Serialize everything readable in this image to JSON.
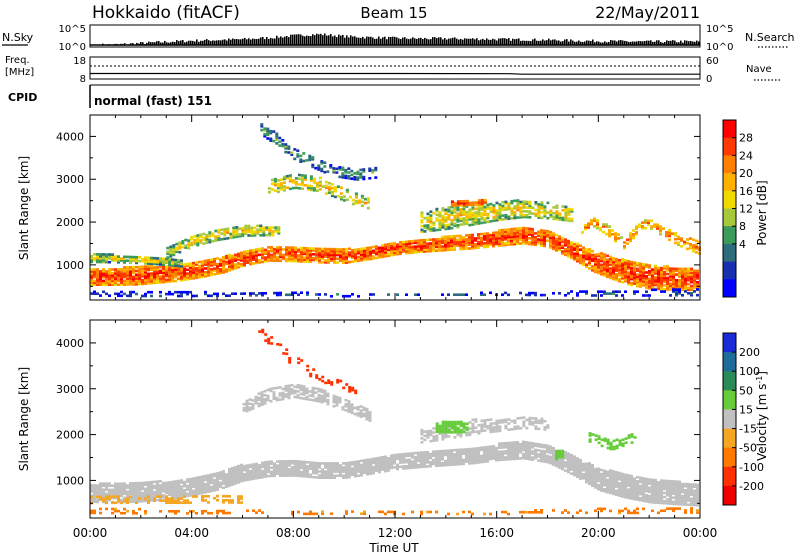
{
  "header": {
    "site": "Hokkaido (fitACF)",
    "beam": "Beam 15",
    "date": "22/May/2011"
  },
  "strips": {
    "nsky": {
      "left_label": "N.Sky",
      "right_label": "N.Search",
      "left_ticks": [
        "10^5",
        "10^0"
      ],
      "right_ticks": [
        "10^5",
        "10^0"
      ]
    },
    "freq": {
      "left_label_1": "Freq.",
      "left_label_2": "[MHz]",
      "right_label": "Nave",
      "left_ticks": [
        "18",
        "8"
      ],
      "right_ticks": [
        "60",
        "0"
      ]
    },
    "cpid": {
      "label": "CPID",
      "program": "normal (fast) 151"
    }
  },
  "axes": {
    "xlabel": "Time UT",
    "ylabel": "Slant Range [km]",
    "x_ticks": [
      "00:00",
      "04:00",
      "08:00",
      "12:00",
      "16:00",
      "20:00",
      "00:00"
    ],
    "y_ticks": [
      "1000",
      "2000",
      "3000",
      "4000"
    ]
  },
  "colorbars": {
    "power": {
      "label": "Power [dB]",
      "ticks": [
        "28",
        "24",
        "20",
        "16",
        "12",
        "8",
        "4"
      ],
      "colors": [
        "#ff0000",
        "#ff3a00",
        "#ff8000",
        "#ffb000",
        "#f0d800",
        "#a8c83c",
        "#3c9a5a",
        "#2c6c7c",
        "#1830b0",
        "#0000ff"
      ]
    },
    "velocity": {
      "label_main": "Velocity [m s",
      "label_sup": "-1",
      "label_end": "]",
      "ticks": [
        "200",
        "100",
        "50",
        "15",
        "-15",
        "-50",
        "-100",
        "-200"
      ],
      "colors": [
        "#1a2ad8",
        "#1e6c9a",
        "#2a8a58",
        "#66cc3a",
        "#c0c0c0",
        "#f5a623",
        "#ff7800",
        "#ff3000",
        "#ee0000"
      ]
    }
  },
  "chart_data": [
    {
      "type": "line",
      "name": "N.Sky / N.Search",
      "x_hours": [
        0,
        1,
        2,
        3,
        4,
        5,
        6,
        7,
        8,
        9,
        10,
        11,
        12,
        13,
        14,
        15,
        16,
        17,
        18,
        19,
        20,
        21,
        22,
        23,
        24
      ],
      "y_log10": [
        0,
        0.1,
        0.5,
        0.9,
        1.2,
        1.4,
        1.6,
        2.0,
        2.6,
        3.0,
        2.4,
        2.1,
        1.9,
        1.8,
        1.8,
        1.7,
        1.6,
        1.5,
        1.4,
        1.2,
        1.1,
        1.0,
        0.9,
        1.0,
        0.9
      ],
      "ylim_log10": [
        0,
        5
      ]
    },
    {
      "type": "line",
      "name": "Freq.",
      "x_hours": [
        0,
        6,
        12,
        16.5,
        17,
        24
      ],
      "values": [
        10.5,
        10.5,
        10.5,
        10.4,
        10.2,
        10.2
      ],
      "ylim": [
        8,
        18
      ]
    },
    {
      "type": "heatmap",
      "name": "Power [dB]",
      "x_range_hours": [
        0,
        24
      ],
      "ylim_km": [
        180,
        4500
      ],
      "clim_db": [
        3,
        30
      ],
      "bands": [
        {
          "t": [
            0,
            0.2,
            1.0,
            1.8,
            2.6,
            3.5,
            4.3,
            5.2,
            6.0,
            7.0,
            8.0,
            9.0,
            10.0,
            11.0,
            12.0,
            13.0,
            14.0,
            15.0,
            16.0,
            17.0,
            18.0,
            19.0,
            19.8,
            20.5,
            21.2,
            22.0,
            23.0,
            24.0
          ],
          "r": [
            680,
            690,
            700,
            720,
            750,
            790,
            860,
            980,
            1120,
            1230,
            1230,
            1190,
            1180,
            1260,
            1370,
            1430,
            1480,
            1520,
            1600,
            1670,
            1580,
            1300,
            1050,
            900,
            780,
            700,
            640,
            620
          ],
          "w": [
            180,
            190,
            200,
            210,
            200,
            190,
            180,
            190,
            160,
            160,
            170,
            160,
            160,
            150,
            150,
            150,
            160,
            160,
            180,
            190,
            180,
            200,
            240,
            260,
            280,
            290,
            260,
            240
          ],
          "db": 27,
          "d": 0.9
        },
        {
          "t": [
            0,
            1.0,
            2.0,
            3.0,
            3.6
          ],
          "r": [
            1130,
            1120,
            1090,
            1050,
            1000
          ],
          "w": [
            90,
            90,
            80,
            80,
            70
          ],
          "db": 18,
          "d": 0.85
        },
        {
          "t": [
            3.0,
            4.0,
            5.0,
            6.0,
            7.0,
            7.4
          ],
          "r": [
            1260,
            1540,
            1690,
            1780,
            1780,
            1760
          ],
          "w": [
            120,
            130,
            130,
            120,
            110,
            90
          ],
          "db": 19,
          "d": 0.75
        },
        {
          "t": [
            13.0,
            14.0,
            15.0,
            16.0,
            17.0,
            18.0,
            19.0
          ],
          "r": [
            1980,
            2080,
            2180,
            2250,
            2300,
            2250,
            2160
          ],
          "w": [
            230,
            260,
            260,
            220,
            200,
            180,
            160
          ],
          "db": 19,
          "d": 0.7
        },
        {
          "t": [
            14.2,
            15.0,
            15.6
          ],
          "r": [
            2430,
            2450,
            2460
          ],
          "w": [
            60,
            60,
            50
          ],
          "db": 28,
          "d": 0.8
        },
        {
          "t": [
            7.0,
            8.0,
            9.0,
            10.0,
            11.0
          ],
          "r": [
            2800,
            2950,
            2870,
            2630,
            2380
          ],
          "w": [
            160,
            160,
            160,
            150,
            140
          ],
          "db": 20,
          "d": 0.55
        },
        {
          "t": [
            6.7,
            8.0,
            9.5,
            10.5,
            11.2
          ],
          "r": [
            4200,
            3600,
            3200,
            3100,
            3150
          ],
          "w": [
            140,
            130,
            130,
            120,
            120
          ],
          "db": 13,
          "d": 0.45
        },
        {
          "t": [
            19.2,
            19.8,
            20.5,
            21.0,
            21.4,
            21.9,
            22.6,
            23.3,
            24.0
          ],
          "r": [
            1780,
            1980,
            1720,
            1420,
            1780,
            1980,
            1720,
            1520,
            1380
          ],
          "w": [
            80,
            100,
            120,
            120,
            110,
            100,
            110,
            140,
            160
          ],
          "db": 24,
          "d": 0.55
        },
        {
          "t": [
            0,
            2.0,
            4.0,
            6.0,
            8.0,
            10.0,
            12.0,
            14.0,
            16.0,
            18.0,
            20.0,
            22.0,
            24.0
          ],
          "r": [
            280,
            270,
            260,
            260,
            270,
            270,
            260,
            260,
            270,
            270,
            280,
            290,
            300
          ],
          "w": [
            80,
            80,
            70,
            60,
            50,
            40,
            40,
            40,
            50,
            60,
            80,
            90,
            90
          ],
          "db": 8,
          "d": 0.35
        }
      ]
    },
    {
      "type": "heatmap",
      "name": "Velocity [m s-1]",
      "x_range_hours": [
        0,
        24
      ],
      "ylim_km": [
        180,
        4500
      ],
      "clim_ms": [
        -250,
        250
      ],
      "bands": [
        {
          "t": [
            0,
            1.0,
            2.0,
            3.0,
            4.0,
            5.0,
            6.0,
            7.0,
            8.0,
            9.0,
            10.0,
            11.0,
            12.0,
            13.0,
            14.0,
            15.0,
            16.0,
            17.0,
            18.0,
            19.0,
            20.0,
            21.0,
            22.0,
            23.0,
            24.0
          ],
          "r": [
            700,
            700,
            720,
            760,
            840,
            960,
            1150,
            1240,
            1250,
            1200,
            1200,
            1280,
            1380,
            1430,
            1480,
            1520,
            1600,
            1650,
            1560,
            1300,
            1000,
            860,
            760,
            700,
            660
          ],
          "w": [
            200,
            210,
            210,
            200,
            190,
            190,
            180,
            170,
            170,
            170,
            170,
            160,
            160,
            160,
            170,
            170,
            180,
            190,
            190,
            210,
            240,
            260,
            270,
            250,
            240
          ],
          "v": 0,
          "d": 0.92
        },
        {
          "t": [
            6.0,
            7.0,
            8.0,
            9.0,
            10.0,
            11.0
          ],
          "r": [
            2600,
            2850,
            2950,
            2850,
            2650,
            2400
          ],
          "w": [
            130,
            140,
            140,
            140,
            130,
            120
          ],
          "v": 0,
          "d": 0.65
        },
        {
          "t": [
            13.0,
            14.0,
            15.0,
            16.0,
            17.0,
            18.0
          ],
          "r": [
            1950,
            2050,
            2150,
            2200,
            2250,
            2200
          ],
          "w": [
            140,
            160,
            160,
            140,
            120,
            110
          ],
          "v": 0,
          "d": 0.55
        },
        {
          "t": [
            13.6,
            14.2,
            14.8
          ],
          "r": [
            2150,
            2150,
            2150
          ],
          "w": [
            110,
            120,
            110
          ],
          "v": 35,
          "d": 0.85
        },
        {
          "t": [
            18.3,
            18.6
          ],
          "r": [
            1550,
            1550
          ],
          "w": [
            110,
            110
          ],
          "v": 35,
          "d": 0.85
        },
        {
          "t": [
            0,
            1.0,
            2.0,
            3.0,
            4.0,
            5.0,
            6.0
          ],
          "r": [
            550,
            560,
            560,
            560,
            560,
            560,
            550
          ],
          "w": [
            80,
            80,
            80,
            80,
            80,
            70,
            70
          ],
          "v": -30,
          "d": 0.45
        },
        {
          "t": [
            0,
            2.0,
            4.0,
            6.0,
            8.0,
            10.0,
            12.0,
            14.0,
            16.0,
            18.0,
            20.0,
            22.0,
            24.0
          ],
          "r": [
            280,
            270,
            260,
            260,
            270,
            270,
            260,
            260,
            270,
            270,
            280,
            290,
            300
          ],
          "w": [
            70,
            70,
            60,
            50,
            40,
            30,
            30,
            30,
            40,
            50,
            70,
            80,
            80
          ],
          "v": -60,
          "d": 0.3
        },
        {
          "t": [
            6.5,
            8.0,
            9.5,
            10.5
          ],
          "r": [
            4300,
            3600,
            3100,
            2950
          ],
          "w": [
            130,
            120,
            120,
            110
          ],
          "v": -120,
          "d": 0.25
        },
        {
          "t": [
            19.5,
            20.5,
            21.5
          ],
          "r": [
            1950,
            1750,
            1950
          ],
          "w": [
            100,
            100,
            100
          ],
          "v": 30,
          "d": 0.35
        }
      ]
    }
  ]
}
